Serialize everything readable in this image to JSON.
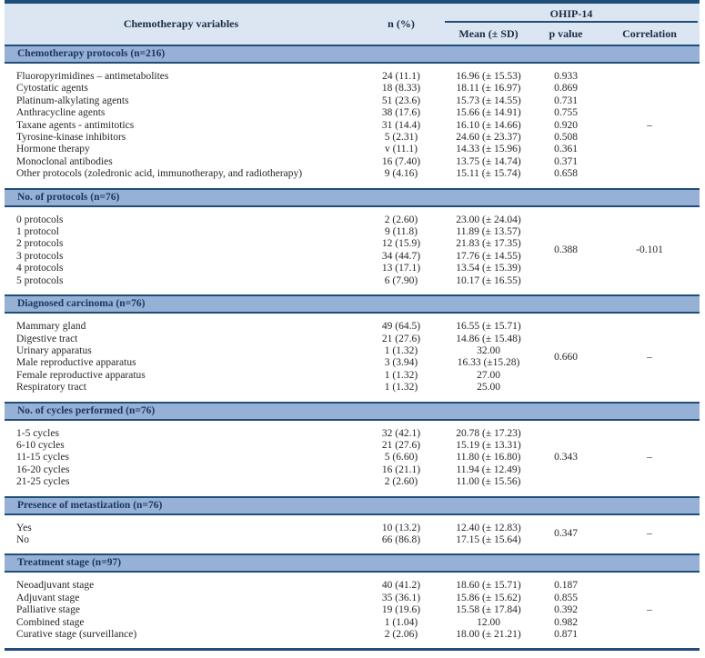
{
  "colors": {
    "border": "#1f4e79",
    "header_bg": "#dce6f2",
    "band_bg": "#97b1d6",
    "band_text": "#17365d",
    "head_text": "#1a2b45"
  },
  "table": {
    "headers": {
      "variables": "Chemotherapy variables",
      "n": "n (%)",
      "group": "OHIP-14",
      "mean": "Mean (± SD)",
      "p_value": "p value",
      "correlation": "Correlation"
    },
    "sections": [
      {
        "id": "chemotherapy-protocols",
        "title": "Chemotherapy protocols (n=216)",
        "p_value": null,
        "correlation": "–",
        "rows": [
          {
            "label": "Fluoropyrimidines – antimetabolites",
            "n": "24 (11.1)",
            "mean": "16.96 (± 15.53)",
            "p": "0.933"
          },
          {
            "label": "Cytostatic agents",
            "n": "18 (8.33)",
            "mean": "18.11 (± 16.97)",
            "p": "0.869"
          },
          {
            "label": "Platinum-alkylating agents",
            "n": "51 (23.6)",
            "mean": "15.73 (± 14.55)",
            "p": "0.731"
          },
          {
            "label": "Anthracycline agents",
            "n": "38 (17.6)",
            "mean": "15.66 (± 14.91)",
            "p": "0.755"
          },
          {
            "label": "Taxane agents - antimitotics",
            "n": "31 (14.4)",
            "mean": "16.10 (± 14.66)",
            "p": "0.920"
          },
          {
            "label": "Tyrosine-kinase inhibitors",
            "n": "5 (2.31)",
            "mean": "24.60 (± 23.37)",
            "p": "0.508"
          },
          {
            "label": "Hormone therapy",
            "n": "v (11.1)",
            "mean": "14.33 (± 15.96)",
            "p": "0.361"
          },
          {
            "label": "Monoclonal antibodies",
            "n": "16 (7.40)",
            "mean": "13.75 (± 14.74)",
            "p": "0.371"
          },
          {
            "label": "Other protocols (zoledronic acid, immunotherapy, and radiotherapy)",
            "n": "9 (4.16)",
            "mean": "15.11 (± 15.74)",
            "p": "0.658"
          }
        ]
      },
      {
        "id": "no-of-protocols",
        "title": "No. of protocols (n=76)",
        "p_value": "0.388",
        "correlation": "-0.101",
        "rows": [
          {
            "label": "0 protocols",
            "n": "2 (2.60)",
            "mean": "23.00 (± 24.04)"
          },
          {
            "label": "1 protocol",
            "n": "9 (11.8)",
            "mean": "11.89 (± 13.57)"
          },
          {
            "label": "2 protocols",
            "n": "12 (15.9)",
            "mean": "21.83 (± 17.35)"
          },
          {
            "label": "3 protocols",
            "n": "34 (44.7)",
            "mean": "17.76 (± 14.55)"
          },
          {
            "label": "4 protocols",
            "n": "13 (17.1)",
            "mean": "13.54 (± 15.39)"
          },
          {
            "label": "5 protocols",
            "n": "6 (7.90)",
            "mean": "10.17 (± 16.55)"
          }
        ]
      },
      {
        "id": "diagnosed-carcinoma",
        "title": "Diagnosed carcinoma (n=76)",
        "p_value": "0.660",
        "correlation": "–",
        "rows": [
          {
            "label": "Mammary gland",
            "n": "49 (64.5)",
            "mean": "16.55 (± 15.71)"
          },
          {
            "label": "Digestive tract",
            "n": "21 (27.6)",
            "mean": "14.86 (± 15.48)"
          },
          {
            "label": "Urinary apparatus",
            "n": "1 (1.32)",
            "mean": "32.00"
          },
          {
            "label": "Male reproductive apparatus",
            "n": "3 (3.94)",
            "mean": "16.33 (±15.28)"
          },
          {
            "label": "Female reproductive apparatus",
            "n": "1 (1.32)",
            "mean": "27.00"
          },
          {
            "label": "Respiratory tract",
            "n": "1 (1.32)",
            "mean": "25.00"
          }
        ]
      },
      {
        "id": "no-of-cycles-performed",
        "title": "No. of cycles performed (n=76)",
        "p_value": "0.343",
        "correlation": "–",
        "rows": [
          {
            "label": "1-5 cycles",
            "n": "32 (42.1)",
            "mean": "20.78 (± 17.23)"
          },
          {
            "label": "6-10 cycles",
            "n": "21 (27.6)",
            "mean": "15.19 (± 13.31)"
          },
          {
            "label": "11-15 cycles",
            "n": "5 (6.60)",
            "mean": "11.80 (± 16.80)"
          },
          {
            "label": "16-20 cycles",
            "n": "16 (21.1)",
            "mean": "11.94 (± 12.49)"
          },
          {
            "label": "21-25 cycles",
            "n": "2 (2.60)",
            "mean": "11.00 (± 15.56)"
          }
        ]
      },
      {
        "id": "presence-of-metastization",
        "title": "Presence of metastization (n=76)",
        "p_value": "0.347",
        "correlation": "–",
        "rows": [
          {
            "label": "Yes",
            "n": "10 (13.2)",
            "mean": "12.40 (± 12.83)"
          },
          {
            "label": "No",
            "n": "66 (86.8)",
            "mean": "17.15 (± 15.64)"
          }
        ]
      },
      {
        "id": "treatment-stage",
        "title": "Treatment stage (n=97)",
        "p_value": null,
        "correlation": "–",
        "rows": [
          {
            "label": "Neoadjuvant stage",
            "n": "40 (41.2)",
            "mean": "18.60 (± 15.71)",
            "p": "0.187"
          },
          {
            "label": "Adjuvant stage",
            "n": "35 (36.1)",
            "mean": "15.86 (± 15.62)",
            "p": "0.855"
          },
          {
            "label": "Palliative stage",
            "n": "19 (19.6)",
            "mean": "15.58 (± 17.84)",
            "p": "0.392"
          },
          {
            "label": "Combined stage",
            "n": "1 (1.04)",
            "mean": "12.00",
            "p": "0.982"
          },
          {
            "label": "Curative stage (surveillance)",
            "n": "2 (2.06)",
            "mean": "18.00 (± 21.21)",
            "p": "0.871"
          }
        ]
      }
    ]
  }
}
